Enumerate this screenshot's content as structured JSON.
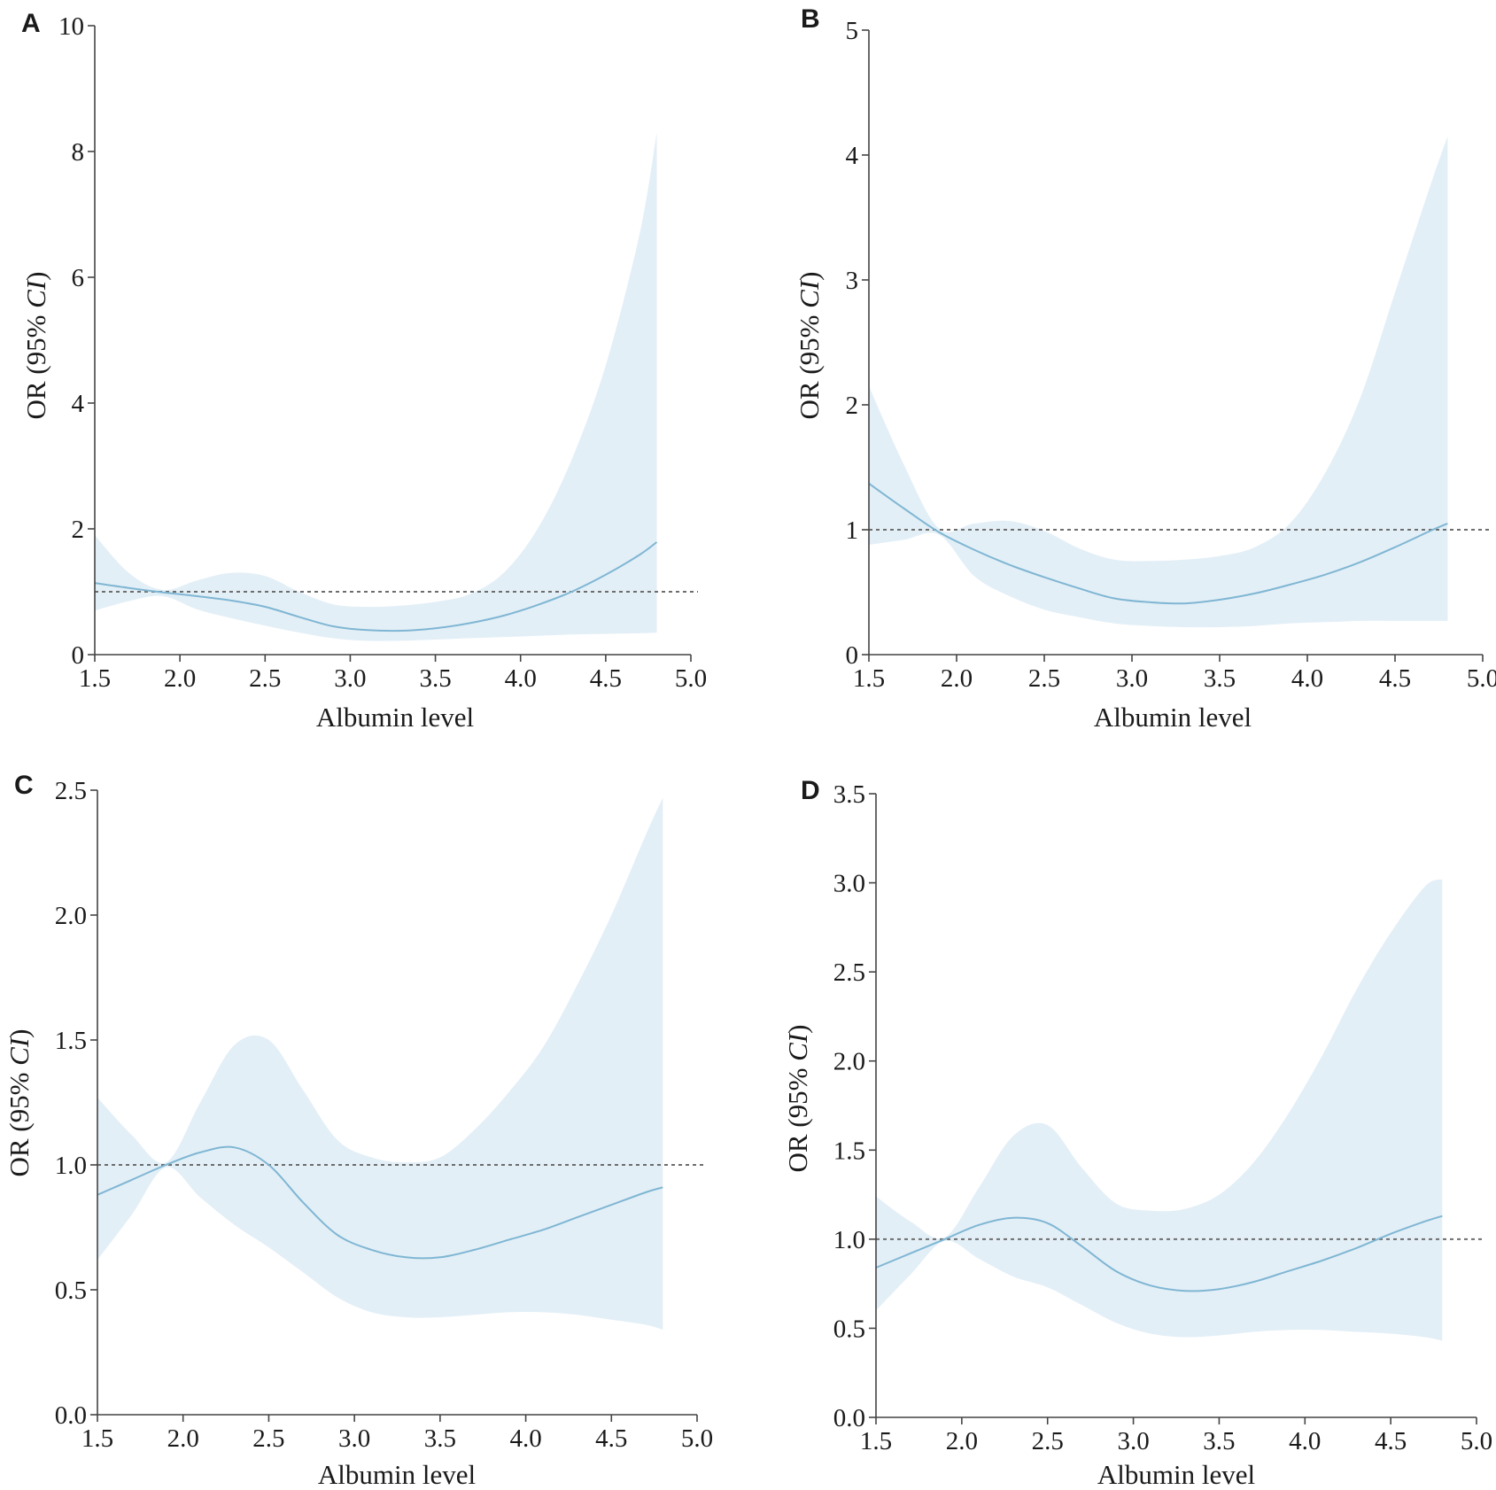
{
  "colors": {
    "band": "#e3eff7",
    "curve": "#7fb6d3",
    "reference": "#6d6d6d"
  },
  "chart_data": [
    {
      "panel": "A",
      "type": "line",
      "xlabel": "Albumin level",
      "ylabel": "OR (95% CI)",
      "ylabel_plain": "OR (95% ",
      "ylabel_italic": "CI",
      "ylabel_close": ")",
      "xlim": [
        1.5,
        5.0
      ],
      "ylim": [
        0,
        10
      ],
      "xticks": [
        "1.5",
        "2.0",
        "2.5",
        "3.0",
        "3.5",
        "4.0",
        "4.5",
        "5.0"
      ],
      "yticks": [
        "0",
        "2",
        "4",
        "6",
        "8",
        "10"
      ],
      "reference_y": 1,
      "x": [
        1.5,
        1.7,
        1.9,
        2.1,
        2.3,
        2.5,
        2.7,
        2.9,
        3.1,
        3.3,
        3.5,
        3.7,
        3.9,
        4.1,
        4.3,
        4.5,
        4.7,
        4.8
      ],
      "or": [
        1.14,
        1.06,
        0.99,
        0.93,
        0.86,
        0.76,
        0.6,
        0.45,
        0.39,
        0.38,
        0.42,
        0.5,
        0.62,
        0.79,
        1.0,
        1.27,
        1.59,
        1.79
      ],
      "lower": [
        0.7,
        0.85,
        0.93,
        0.72,
        0.58,
        0.46,
        0.35,
        0.26,
        0.22,
        0.22,
        0.24,
        0.26,
        0.28,
        0.3,
        0.32,
        0.33,
        0.34,
        0.35
      ],
      "upper": [
        1.9,
        1.3,
        1.03,
        1.18,
        1.3,
        1.25,
        1.0,
        0.8,
        0.76,
        0.78,
        0.84,
        0.96,
        1.3,
        2.0,
        3.1,
        4.6,
        6.7,
        8.3
      ]
    },
    {
      "panel": "B",
      "type": "line",
      "xlabel": "Albumin level",
      "ylabel": "OR (95% CI)",
      "ylabel_plain": "OR (95% ",
      "ylabel_italic": "CI",
      "ylabel_close": ")",
      "xlim": [
        1.5,
        5.0
      ],
      "ylim": [
        0,
        5
      ],
      "xticks": [
        "1.5",
        "2.0",
        "2.5",
        "3.0",
        "3.5",
        "4.0",
        "4.5",
        "5.0"
      ],
      "yticks": [
        "0",
        "1",
        "2",
        "3",
        "4",
        "5"
      ],
      "reference_y": 1,
      "x": [
        1.5,
        1.7,
        1.9,
        2.1,
        2.3,
        2.5,
        2.7,
        2.9,
        3.1,
        3.3,
        3.5,
        3.7,
        3.9,
        4.1,
        4.3,
        4.5,
        4.7,
        4.8
      ],
      "or": [
        1.37,
        1.17,
        0.98,
        0.84,
        0.72,
        0.62,
        0.53,
        0.45,
        0.42,
        0.41,
        0.44,
        0.49,
        0.56,
        0.64,
        0.74,
        0.86,
        0.99,
        1.05
      ],
      "lower": [
        0.88,
        0.92,
        0.96,
        0.63,
        0.47,
        0.36,
        0.3,
        0.25,
        0.23,
        0.22,
        0.22,
        0.23,
        0.25,
        0.26,
        0.27,
        0.27,
        0.27,
        0.27
      ],
      "upper": [
        2.15,
        1.52,
        1.01,
        1.05,
        1.07,
        0.99,
        0.85,
        0.76,
        0.75,
        0.76,
        0.79,
        0.86,
        1.05,
        1.45,
        2.05,
        2.9,
        3.75,
        4.15
      ]
    },
    {
      "panel": "C",
      "type": "line",
      "xlabel": "Albumin level",
      "ylabel": "OR (95% CI)",
      "ylabel_plain": "OR (95% ",
      "ylabel_italic": "CI",
      "ylabel_close": ")",
      "xlim": [
        1.5,
        5.0
      ],
      "ylim": [
        0,
        2.5
      ],
      "xticks": [
        "1.5",
        "2.0",
        "2.5",
        "3.0",
        "3.5",
        "4.0",
        "4.5",
        "5.0"
      ],
      "yticks": [
        "0.0",
        "0.5",
        "1.0",
        "1.5",
        "2.0",
        "2.5"
      ],
      "reference_y": 1,
      "x": [
        1.5,
        1.7,
        1.9,
        2.1,
        2.3,
        2.5,
        2.7,
        2.9,
        3.1,
        3.3,
        3.5,
        3.7,
        3.9,
        4.1,
        4.3,
        4.5,
        4.7,
        4.8
      ],
      "or": [
        0.88,
        0.94,
        1.0,
        1.05,
        1.07,
        1.0,
        0.85,
        0.72,
        0.66,
        0.63,
        0.63,
        0.66,
        0.7,
        0.74,
        0.79,
        0.84,
        0.89,
        0.91
      ],
      "lower": [
        0.62,
        0.8,
        0.99,
        0.87,
        0.76,
        0.67,
        0.57,
        0.47,
        0.41,
        0.39,
        0.39,
        0.4,
        0.41,
        0.41,
        0.4,
        0.38,
        0.36,
        0.34
      ],
      "upper": [
        1.27,
        1.12,
        1.01,
        1.25,
        1.48,
        1.5,
        1.3,
        1.1,
        1.03,
        1.01,
        1.03,
        1.14,
        1.29,
        1.47,
        1.72,
        2.0,
        2.32,
        2.47
      ]
    },
    {
      "panel": "D",
      "type": "line",
      "xlabel": "Albumin level",
      "ylabel": "OR (95% CI)",
      "ylabel_plain": "OR (95% ",
      "ylabel_italic": "CI",
      "ylabel_close": ")",
      "xlim": [
        1.5,
        5.0
      ],
      "ylim": [
        0,
        3.5
      ],
      "xticks": [
        "1.5",
        "2.0",
        "2.5",
        "3.0",
        "3.5",
        "4.0",
        "4.5",
        "5.0"
      ],
      "yticks": [
        "0.0",
        "0.5",
        "1.0",
        "1.5",
        "2.0",
        "2.5",
        "3.0",
        "3.5"
      ],
      "reference_y": 1,
      "x": [
        1.5,
        1.7,
        1.9,
        2.1,
        2.3,
        2.5,
        2.7,
        2.9,
        3.1,
        3.3,
        3.5,
        3.7,
        3.9,
        4.1,
        4.3,
        4.5,
        4.7,
        4.8
      ],
      "or": [
        0.84,
        0.92,
        1.0,
        1.08,
        1.12,
        1.09,
        0.96,
        0.82,
        0.74,
        0.71,
        0.72,
        0.76,
        0.82,
        0.88,
        0.95,
        1.03,
        1.1,
        1.13
      ],
      "lower": [
        0.6,
        0.8,
        0.99,
        0.89,
        0.79,
        0.73,
        0.63,
        0.53,
        0.47,
        0.45,
        0.46,
        0.48,
        0.49,
        0.49,
        0.48,
        0.47,
        0.45,
        0.43
      ],
      "upper": [
        1.24,
        1.1,
        1.01,
        1.29,
        1.58,
        1.64,
        1.4,
        1.2,
        1.16,
        1.17,
        1.25,
        1.43,
        1.7,
        2.03,
        2.4,
        2.72,
        2.98,
        3.02
      ]
    }
  ]
}
